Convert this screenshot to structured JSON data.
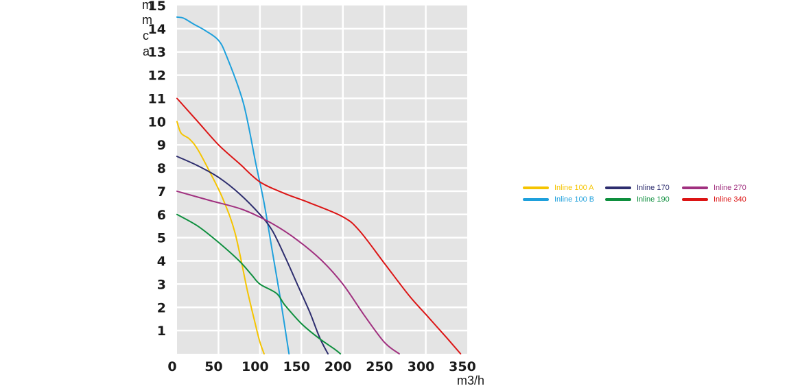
{
  "chart_data": {
    "type": "line",
    "ylabel": "mmca",
    "xlabel": "m3/h",
    "xlim": [
      0,
      350
    ],
    "ylim": [
      0,
      15
    ],
    "x_ticks": [
      0,
      50,
      100,
      150,
      200,
      250,
      300,
      350
    ],
    "y_ticks": [
      1,
      2,
      3,
      4,
      5,
      6,
      7,
      8,
      9,
      10,
      11,
      12,
      13,
      14,
      15
    ],
    "grid": true,
    "legend_position": "right",
    "series": [
      {
        "name": "Inline 100 A",
        "color": "#f5c400",
        "x": [
          0,
          5,
          15,
          25,
          40,
          55,
          70,
          85,
          95,
          100,
          105
        ],
        "y": [
          10,
          9.5,
          9.25,
          8.8,
          7.8,
          6.7,
          5.2,
          2.7,
          1.2,
          0.5,
          0
        ]
      },
      {
        "name": "Inline 100 B",
        "color": "#1ea0dc",
        "x": [
          0,
          8,
          20,
          35,
          50,
          60,
          80,
          95,
          105,
          115,
          125,
          135
        ],
        "y": [
          14.5,
          14.45,
          14.2,
          13.9,
          13.5,
          12.8,
          10.8,
          8.2,
          6.5,
          4.4,
          2.3,
          0
        ]
      },
      {
        "name": "Inline 170",
        "color": "#2d2d6e",
        "x": [
          0,
          25,
          50,
          75,
          100,
          115,
          130,
          145,
          160,
          172,
          182
        ],
        "y": [
          8.5,
          8.1,
          7.6,
          6.9,
          6.0,
          5.3,
          4.2,
          3.0,
          1.8,
          0.7,
          0
        ]
      },
      {
        "name": "Inline 190",
        "color": "#0e8f3e",
        "x": [
          0,
          25,
          50,
          75,
          90,
          100,
          120,
          130,
          150,
          170,
          190,
          197
        ],
        "y": [
          6,
          5.5,
          4.8,
          4.0,
          3.4,
          3.0,
          2.6,
          2.1,
          1.3,
          0.7,
          0.2,
          0
        ]
      },
      {
        "name": "Inline 270",
        "color": "#a0307f",
        "x": [
          0,
          40,
          80,
          115,
          145,
          175,
          200,
          225,
          250,
          268
        ],
        "y": [
          7,
          6.6,
          6.2,
          5.6,
          4.9,
          4.0,
          3.0,
          1.7,
          0.5,
          0
        ]
      },
      {
        "name": "Inline 340",
        "color": "#dc1414",
        "x": [
          0,
          25,
          50,
          75,
          100,
          130,
          160,
          200,
          220,
          250,
          280,
          300,
          325,
          342
        ],
        "y": [
          11,
          10,
          9.0,
          8.2,
          7.4,
          6.9,
          6.5,
          5.9,
          5.3,
          3.9,
          2.5,
          1.7,
          0.7,
          0
        ]
      }
    ]
  }
}
